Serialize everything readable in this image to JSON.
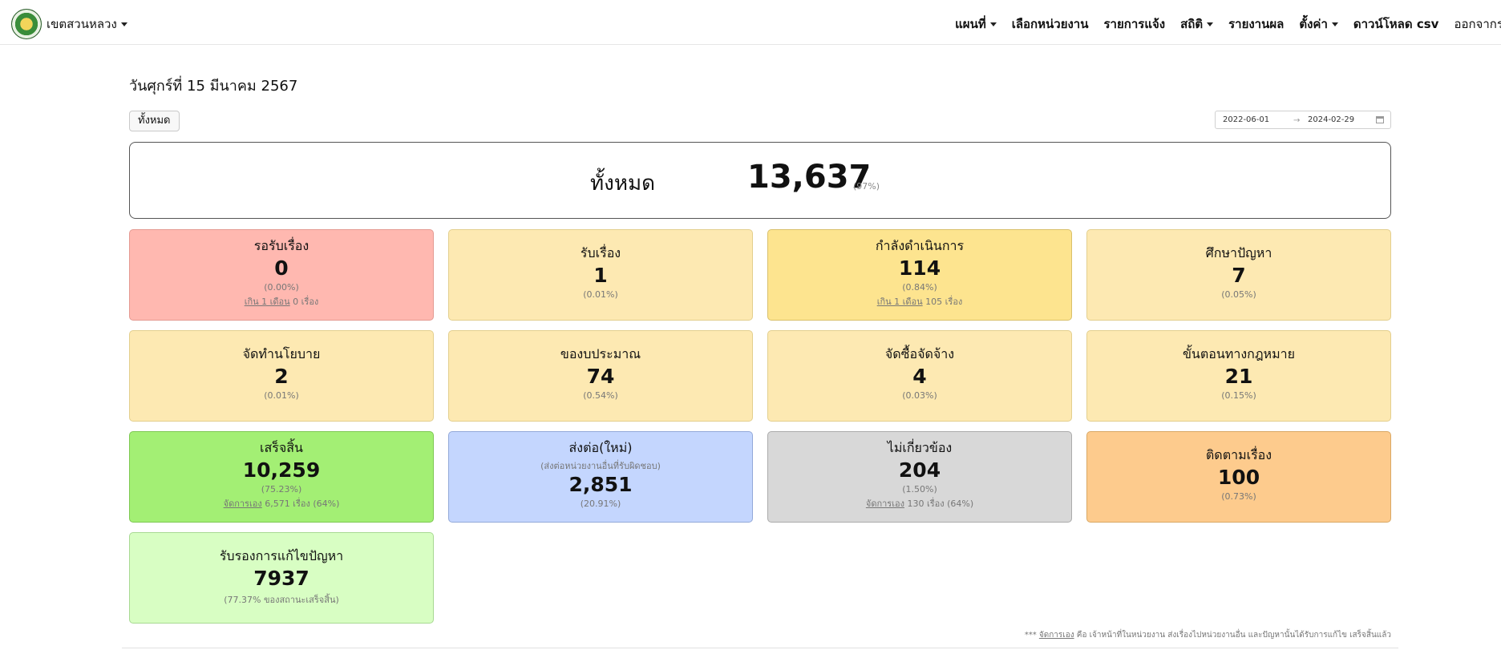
{
  "header": {
    "brand": "เขตสวนหลวง",
    "nav": [
      {
        "label": "แผนที่",
        "dropdown": true
      },
      {
        "label": "เลือกหน่วยงาน",
        "dropdown": false
      },
      {
        "label": "รายการแจ้ง",
        "dropdown": false
      },
      {
        "label": "สถิติ",
        "dropdown": true
      },
      {
        "label": "รายงานผล",
        "dropdown": false
      },
      {
        "label": "ตั้งค่า",
        "dropdown": true
      },
      {
        "label": "ดาวน์โหลด csv",
        "dropdown": false
      },
      {
        "label": "ออกจากระบบ",
        "dropdown": false
      }
    ]
  },
  "date_title": "วันศุกร์ที่ 15 มีนาคม 2567",
  "all_button": "ทั้งหมด",
  "date_range": {
    "start": "2022-06-01",
    "arrow": "→",
    "end": "2024-02-29"
  },
  "total": {
    "label": "ทั้งหมด",
    "value": "13,637",
    "pct": "(97%)"
  },
  "cards": [
    {
      "title": "รอรับเรื่อง",
      "value": "0",
      "pct": "(0.00%)",
      "note_link": "เกิน 1 เดือน",
      "note_rest": " 0 เรื่อง"
    },
    {
      "title": "รับเรื่อง",
      "value": "1",
      "pct": "(0.01%)"
    },
    {
      "title": "กำลังดำเนินการ",
      "value": "114",
      "pct": "(0.84%)",
      "note_link": "เกิน 1 เดือน",
      "note_rest": " 105 เรื่อง"
    },
    {
      "title": "ศึกษาปัญหา",
      "value": "7",
      "pct": "(0.05%)"
    },
    {
      "title": "จัดทำนโยบาย",
      "value": "2",
      "pct": "(0.01%)"
    },
    {
      "title": "ของบประมาณ",
      "value": "74",
      "pct": "(0.54%)"
    },
    {
      "title": "จัดซื้อจัดจ้าง",
      "value": "4",
      "pct": "(0.03%)"
    },
    {
      "title": "ขั้นตอนทางกฎหมาย",
      "value": "21",
      "pct": "(0.15%)"
    },
    {
      "title": "เสร็จสิ้น",
      "value": "10,259",
      "pct": "(75.23%)",
      "note_link": "จัดการเอง",
      "note_rest": " 6,571 เรื่อง (64%)"
    },
    {
      "title": "ส่งต่อ(ใหม่)",
      "sub": "(ส่งต่อหน่วยงานอื่นที่รับผิดชอบ)",
      "value": "2,851",
      "pct": "(20.91%)"
    },
    {
      "title": "ไม่เกี่ยวข้อง",
      "value": "204",
      "pct": "(1.50%)",
      "note_link": "จัดการเอง",
      "note_rest": " 130 เรื่อง (64%)"
    },
    {
      "title": "ติดตามเรื่อง",
      "value": "100",
      "pct": "(0.73%)"
    },
    {
      "title": "รับรองการแก้ไขปัญหา",
      "value": "7937",
      "pct": "(77.37% ของสถานะเสร็จสิ้น)"
    }
  ],
  "footnote": {
    "prefix": "*** ",
    "link": "จัดการเอง",
    "rest": " คือ เจ้าหน้าที่ในหน่วยงาน ส่งเรื่องไปหน่วยงานอื่น และปัญหานั้นได้รับการแก้ไข เสร็จสิ้นแล้ว"
  },
  "colors": {
    "red": "#ffb8b0",
    "yellow": "#fde9b2",
    "yellow_strong": "#fde48f",
    "green": "#a3ef74",
    "blue": "#c4d6fe",
    "gray": "#d8d8d8",
    "orange": "#fdcb8d",
    "light_green": "#d8fec3"
  }
}
